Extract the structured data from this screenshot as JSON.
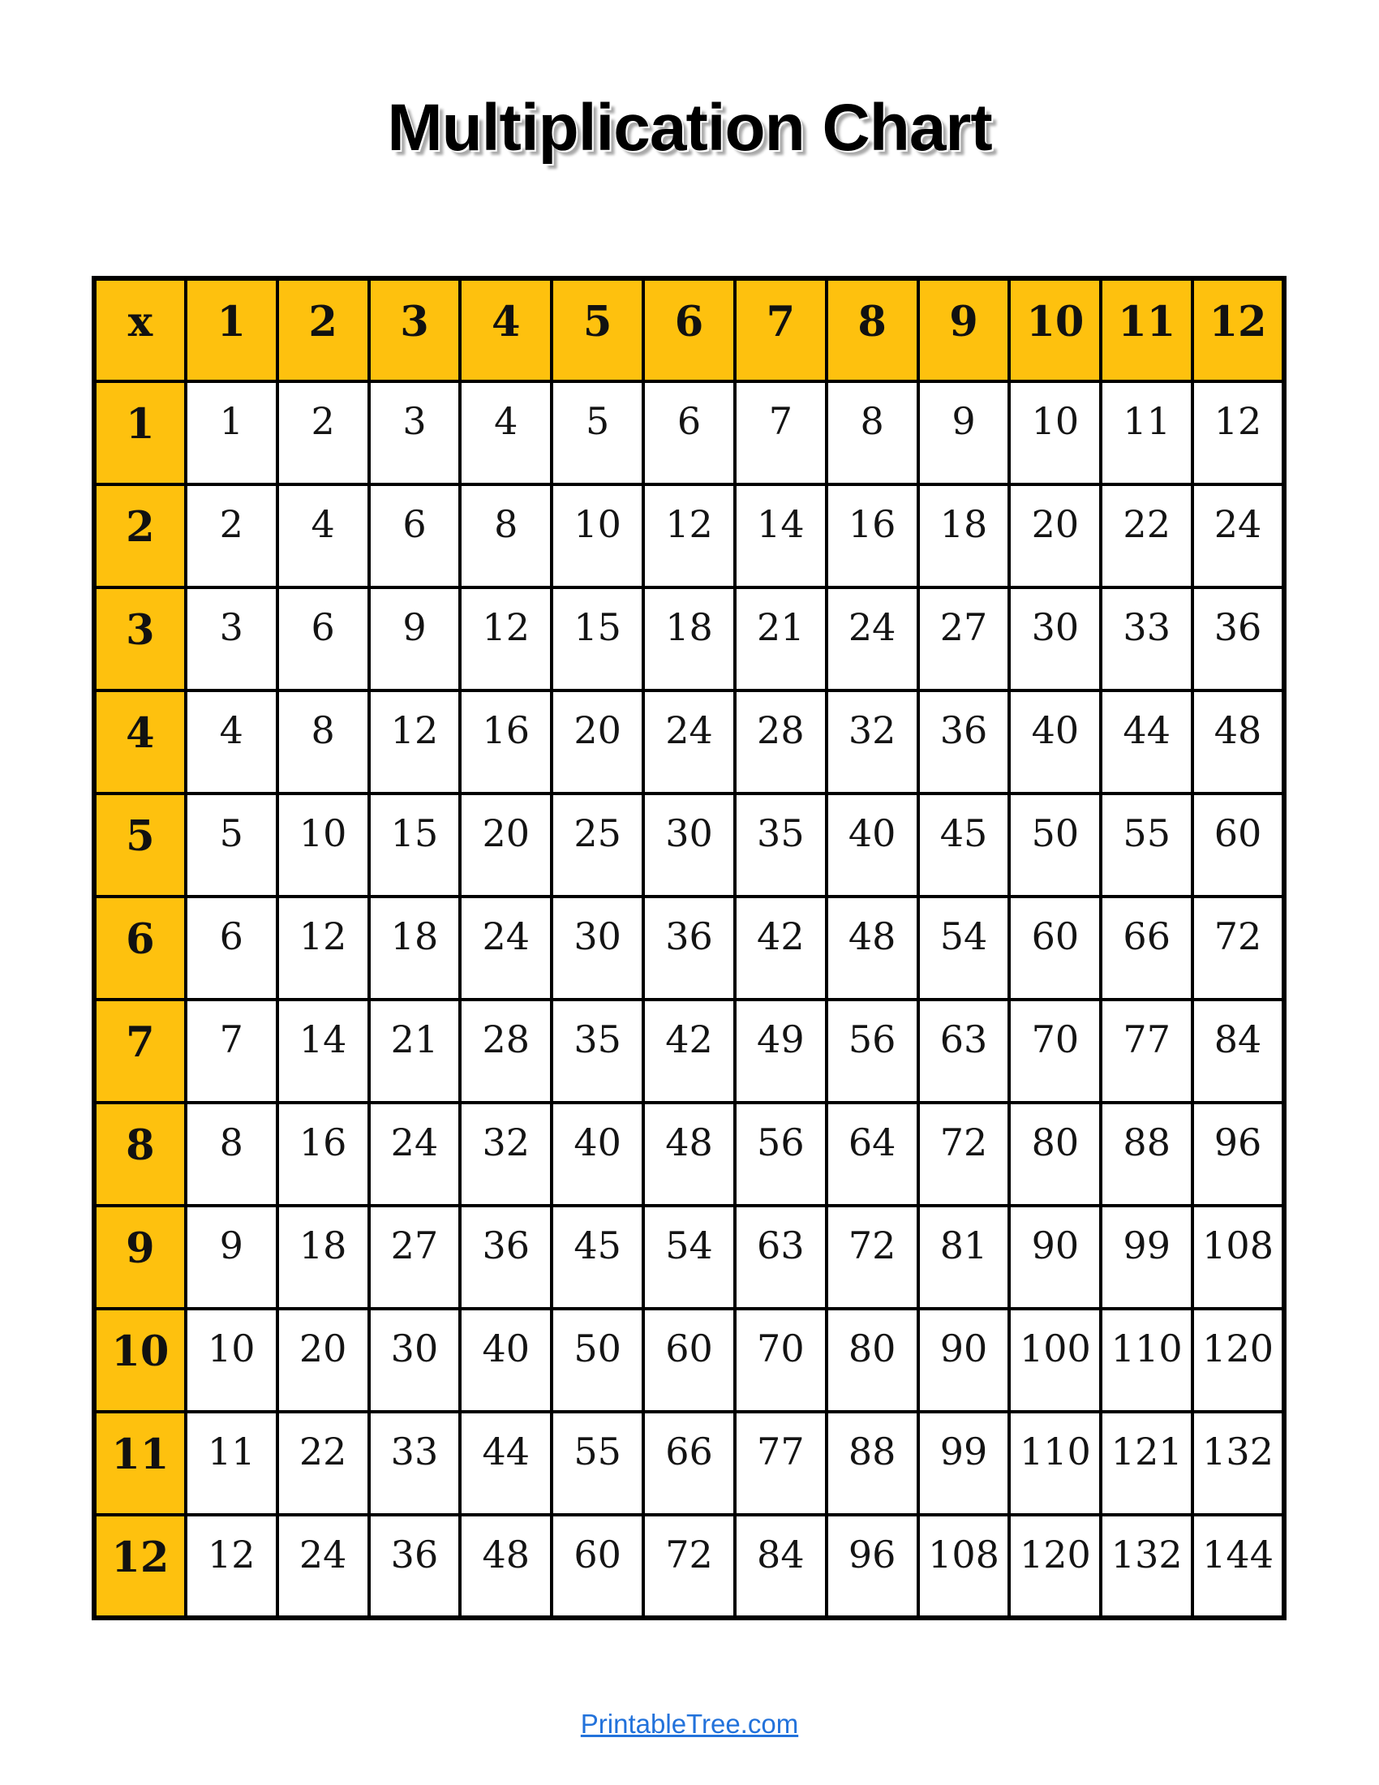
{
  "title": "Multiplication Chart",
  "colors": {
    "header_bg": "#FEC10E",
    "grid_border": "#000000",
    "link_blue": "#2272DB",
    "title_shadow": "#A8A8A8"
  },
  "footer": {
    "link_text": "PrintableTree.com"
  },
  "chart_data": {
    "type": "table",
    "title": "Multiplication Chart",
    "corner_label": "x",
    "columns": [
      "1",
      "2",
      "3",
      "4",
      "5",
      "6",
      "7",
      "8",
      "9",
      "10",
      "11",
      "12"
    ],
    "rows": [
      {
        "label": "1",
        "values": [
          "1",
          "2",
          "3",
          "4",
          "5",
          "6",
          "7",
          "8",
          "9",
          "10",
          "11",
          "12"
        ]
      },
      {
        "label": "2",
        "values": [
          "2",
          "4",
          "6",
          "8",
          "10",
          "12",
          "14",
          "16",
          "18",
          "20",
          "22",
          "24"
        ]
      },
      {
        "label": "3",
        "values": [
          "3",
          "6",
          "9",
          "12",
          "15",
          "18",
          "21",
          "24",
          "27",
          "30",
          "33",
          "36"
        ]
      },
      {
        "label": "4",
        "values": [
          "4",
          "8",
          "12",
          "16",
          "20",
          "24",
          "28",
          "32",
          "36",
          "40",
          "44",
          "48"
        ]
      },
      {
        "label": "5",
        "values": [
          "5",
          "10",
          "15",
          "20",
          "25",
          "30",
          "35",
          "40",
          "45",
          "50",
          "55",
          "60"
        ]
      },
      {
        "label": "6",
        "values": [
          "6",
          "12",
          "18",
          "24",
          "30",
          "36",
          "42",
          "48",
          "54",
          "60",
          "66",
          "72"
        ]
      },
      {
        "label": "7",
        "values": [
          "7",
          "14",
          "21",
          "28",
          "35",
          "42",
          "49",
          "56",
          "63",
          "70",
          "77",
          "84"
        ]
      },
      {
        "label": "8",
        "values": [
          "8",
          "16",
          "24",
          "32",
          "40",
          "48",
          "56",
          "64",
          "72",
          "80",
          "88",
          "96"
        ]
      },
      {
        "label": "9",
        "values": [
          "9",
          "18",
          "27",
          "36",
          "45",
          "54",
          "63",
          "72",
          "81",
          "90",
          "99",
          "108"
        ]
      },
      {
        "label": "10",
        "values": [
          "10",
          "20",
          "30",
          "40",
          "50",
          "60",
          "70",
          "80",
          "90",
          "100",
          "110",
          "120"
        ]
      },
      {
        "label": "11",
        "values": [
          "11",
          "22",
          "33",
          "44",
          "55",
          "66",
          "77",
          "88",
          "99",
          "110",
          "121",
          "132"
        ]
      },
      {
        "label": "12",
        "values": [
          "12",
          "24",
          "36",
          "48",
          "60",
          "72",
          "84",
          "96",
          "108",
          "120",
          "132",
          "144"
        ]
      }
    ]
  }
}
